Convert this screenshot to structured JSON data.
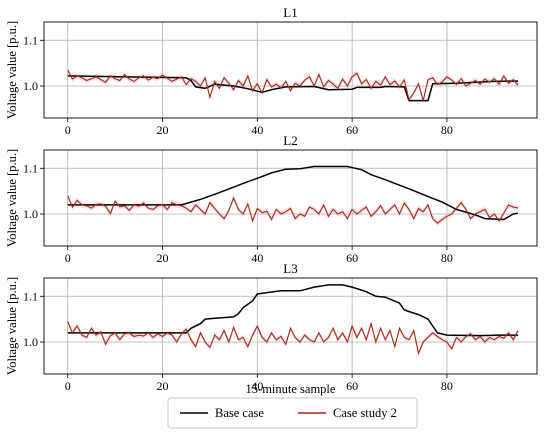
{
  "chart_data": {
    "type": "line",
    "xlabel": "15-minute sample",
    "ylabel": "Voltage value [p.u.]",
    "x_ticks": [
      "0",
      "20",
      "40",
      "60",
      "80"
    ],
    "xlim": [
      -5,
      99
    ],
    "ylim": [
      0.93,
      1.14
    ],
    "y_ticks": [
      "1.0",
      "1.1"
    ],
    "grid": true,
    "legend": {
      "placement": "bottom-center",
      "entries": [
        "Base case",
        "Case study 2"
      ]
    },
    "colors": {
      "base": "#000000",
      "case": "#a52a0f",
      "shade": "#f2c2d8"
    },
    "panels": [
      {
        "title": "L1",
        "series": [
          {
            "name": "Base case",
            "points": [
              [
                0,
                1.022
              ],
              [
                25,
                1.018
              ],
              [
                26,
                1.012
              ],
              [
                27,
                0.998
              ],
              [
                29,
                0.995
              ],
              [
                31,
                1.004
              ],
              [
                35,
                1.0
              ],
              [
                38,
                0.994
              ],
              [
                41,
                0.986
              ],
              [
                43,
                0.992
              ],
              [
                46,
                0.998
              ],
              [
                52,
                0.999
              ],
              [
                55,
                0.992
              ],
              [
                60,
                0.993
              ],
              [
                61,
                0.997
              ],
              [
                66,
                0.997
              ],
              [
                67,
                0.999
              ],
              [
                71,
                0.998
              ],
              [
                72,
                0.968
              ],
              [
                76,
                0.968
              ],
              [
                77,
                1.005
              ],
              [
                82,
                1.006
              ],
              [
                90,
                1.01
              ],
              [
                95,
                1.011
              ]
            ]
          },
          {
            "name": "Case study 2",
            "values": [
              1.035,
              1.015,
              1.022,
              1.018,
              1.012,
              1.016,
              1.02,
              1.014,
              1.008,
              1.022,
              1.016,
              1.012,
              1.025,
              1.015,
              1.01,
              1.018,
              1.022,
              1.013,
              1.019,
              1.016,
              1.024,
              1.017,
              1.01,
              1.015,
              1.02,
              1.003,
              1.016,
              1.01,
              1.0,
              1.018,
              0.975,
              1.01,
              0.995,
              1.018,
              1.006,
              0.992,
              1.012,
              1.0,
              1.022,
              0.99,
              1.005,
              0.985,
              1.014,
              0.998,
              1.004,
              0.996,
              1.01,
              0.99,
              1.006,
              1.0,
              1.013,
              1.02,
              1.0,
              1.025,
              0.998,
              1.012,
              1.004,
              0.995,
              1.015,
              1.0,
              1.02,
              1.028,
              1.005,
              1.014,
              0.995,
              1.01,
              1.002,
              1.02,
              1.003,
              1.011,
              0.998,
              1.013,
              0.97,
              0.985,
              1.005,
              0.968,
              1.014,
              1.018,
              1.003,
              1.009,
              1.02,
              1.013,
              1.003,
              1.016,
              1.0,
              1.006,
              1.012,
              1.004,
              1.015,
              1.008,
              1.016,
              1.004,
              1.022,
              1.006,
              1.014,
              1.002
            ]
          }
        ]
      },
      {
        "title": "L2",
        "series": [
          {
            "name": "Base case",
            "points": [
              [
                0,
                1.02
              ],
              [
                24,
                1.02
              ],
              [
                25,
                1.023
              ],
              [
                28,
                1.032
              ],
              [
                31,
                1.043
              ],
              [
                34,
                1.055
              ],
              [
                37,
                1.067
              ],
              [
                40,
                1.078
              ],
              [
                43,
                1.09
              ],
              [
                46,
                1.098
              ],
              [
                49,
                1.099
              ],
              [
                52,
                1.104
              ],
              [
                59,
                1.104
              ],
              [
                62,
                1.097
              ],
              [
                64,
                1.086
              ],
              [
                67,
                1.075
              ],
              [
                70,
                1.063
              ],
              [
                73,
                1.051
              ],
              [
                76,
                1.038
              ],
              [
                79,
                1.026
              ],
              [
                82,
                1.01
              ],
              [
                86,
                0.998
              ],
              [
                88,
                0.99
              ],
              [
                92,
                0.988
              ],
              [
                94,
                1.0
              ],
              [
                95,
                1.002
              ]
            ]
          },
          {
            "name": "Case study 2",
            "values": [
              1.04,
              1.015,
              1.03,
              1.02,
              1.018,
              1.013,
              1.021,
              1.022,
              1.017,
              1.001,
              1.028,
              1.016,
              1.018,
              1.008,
              1.02,
              1.017,
              1.024,
              1.013,
              1.01,
              1.018,
              1.02,
              1.01,
              1.025,
              1.02,
              1.018,
              1.013,
              1.005,
              1.02,
              1.01,
              1.0,
              1.025,
              1.012,
              1.0,
              0.99,
              1.008,
              1.035,
              1.01,
              1.0,
              1.022,
              0.985,
              1.012,
              1.003,
              1.006,
              0.988,
              1.01,
              1.0,
              1.005,
              1.012,
              0.99,
              1.0,
              0.995,
              1.015,
              1.01,
              1.0,
              1.02,
              0.995,
              1.01,
              1.0,
              1.005,
              0.99,
              1.01,
              1.0,
              1.008,
              1.015,
              0.995,
              1.005,
              1.018,
              1.0,
              1.01,
              1.02,
              1.0,
              1.024,
              1.01,
              0.99,
              1.012,
              1.005,
              1.02,
              0.99,
              0.98,
              0.988,
              0.995,
              1.0,
              1.012,
              1.025,
              1.01,
              0.99,
              1.0,
              1.005,
              1.01,
              0.992,
              1.0,
              0.985,
              1.002,
              1.02,
              1.015,
              1.013
            ]
          }
        ]
      },
      {
        "title": "L3",
        "series": [
          {
            "name": "Base case",
            "points": [
              [
                0,
                1.02
              ],
              [
                25,
                1.02
              ],
              [
                26,
                1.03
              ],
              [
                28,
                1.04
              ],
              [
                29,
                1.05
              ],
              [
                31,
                1.052
              ],
              [
                35,
                1.055
              ],
              [
                36,
                1.062
              ],
              [
                37,
                1.075
              ],
              [
                39,
                1.09
              ],
              [
                40,
                1.105
              ],
              [
                42,
                1.108
              ],
              [
                45,
                1.112
              ],
              [
                49,
                1.112
              ],
              [
                52,
                1.12
              ],
              [
                55,
                1.125
              ],
              [
                58,
                1.125
              ],
              [
                60,
                1.12
              ],
              [
                63,
                1.11
              ],
              [
                65,
                1.1
              ],
              [
                67,
                1.098
              ],
              [
                70,
                1.085
              ],
              [
                71,
                1.07
              ],
              [
                74,
                1.06
              ],
              [
                76,
                1.05
              ],
              [
                77,
                1.035
              ],
              [
                78,
                1.02
              ],
              [
                80,
                1.015
              ],
              [
                87,
                1.014
              ],
              [
                91,
                1.015
              ],
              [
                95,
                1.015
              ]
            ]
          },
          {
            "name": "Case study 2",
            "values": [
              1.045,
              1.02,
              1.035,
              1.015,
              1.01,
              1.03,
              1.015,
              1.022,
              0.995,
              1.014,
              1.02,
              1.005,
              1.018,
              1.02,
              1.012,
              1.015,
              1.013,
              1.02,
              1.01,
              1.018,
              1.012,
              1.02,
              1.015,
              1.0,
              1.018,
              1.028,
              1.005,
              0.99,
              1.02,
              1.0,
              0.988,
              1.015,
              1.005,
              1.025,
              1.0,
              1.032,
              1.005,
              1.01,
              0.99,
              1.015,
              1.035,
              1.01,
              1.0,
              1.02,
              1.005,
              1.012,
              0.995,
              1.03,
              1.01,
              1.0,
              1.015,
              1.005,
              1.0,
              1.02,
              1.0,
              1.01,
              1.03,
              1.005,
              1.02,
              1.0,
              1.035,
              1.01,
              1.03,
              1.005,
              1.04,
              1.0,
              1.03,
              1.005,
              1.025,
              0.99,
              1.03,
              1.01,
              1.005,
              1.025,
              0.975,
              1.0,
              1.01,
              1.02,
              1.012,
              1.005,
              1.0,
              0.985,
              1.01,
              1.0,
              1.012,
              1.018,
              1.005,
              1.012,
              1.0,
              1.01,
              1.005,
              1.012,
              1.008,
              1.02,
              1.005,
              1.025
            ]
          }
        ]
      }
    ]
  }
}
